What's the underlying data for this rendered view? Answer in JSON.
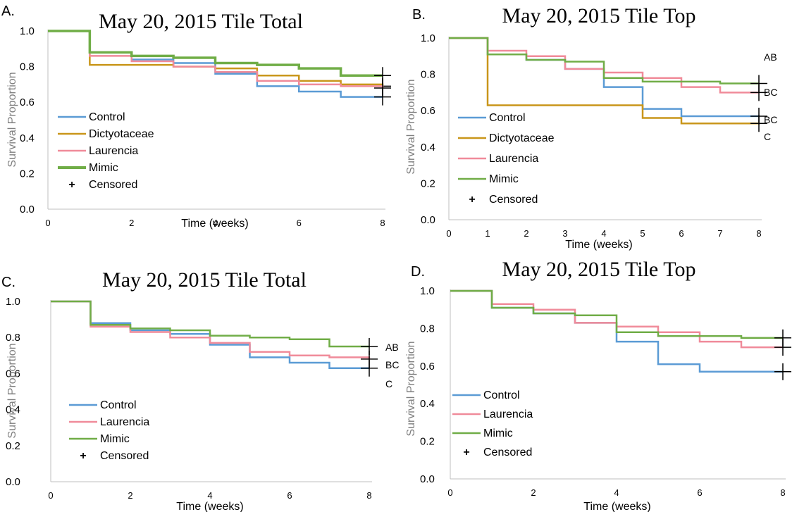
{
  "chart_data": [
    {
      "type": "line",
      "panel": "A.",
      "title": "May 20, 2015 Tile Total",
      "xlabel": "Time (weeks)",
      "ylabel": "Survival Proportion",
      "xlim": [
        0,
        8
      ],
      "ylim": [
        0,
        1
      ],
      "xticks": [
        "0",
        "2",
        "4",
        "6",
        "8"
      ],
      "yticks": [
        "0.0",
        "0.2",
        "0.4",
        "0.6",
        "0.8",
        "1.0"
      ],
      "grid": false,
      "legend_position": "left",
      "censored_label": "Censored",
      "significance_labels": [],
      "series": [
        {
          "name": "Control",
          "color": "#5b9bd5",
          "x": [
            0,
            1,
            2,
            3,
            4,
            5,
            6,
            7,
            8
          ],
          "y": [
            1.0,
            0.88,
            0.84,
            0.82,
            0.76,
            0.69,
            0.66,
            0.63,
            0.63
          ]
        },
        {
          "name": "Dictyotaceae",
          "color": "#c9961a",
          "x": [
            0,
            1,
            2,
            3,
            4,
            5,
            6,
            7,
            8
          ],
          "y": [
            1.0,
            0.81,
            0.81,
            0.8,
            0.79,
            0.75,
            0.72,
            0.7,
            0.69
          ]
        },
        {
          "name": "Laurencia",
          "color": "#f08b9a",
          "x": [
            0,
            1,
            2,
            3,
            4,
            5,
            6,
            7,
            8
          ],
          "y": [
            1.0,
            0.86,
            0.83,
            0.8,
            0.77,
            0.72,
            0.7,
            0.69,
            0.68
          ]
        },
        {
          "name": "Mimic",
          "color": "#70ad47",
          "x": [
            0,
            1,
            2,
            3,
            4,
            5,
            6,
            7,
            8
          ],
          "y": [
            1.0,
            0.88,
            0.86,
            0.85,
            0.82,
            0.81,
            0.79,
            0.75,
            0.75
          ]
        }
      ]
    },
    {
      "type": "line",
      "panel": "B.",
      "title": "May 20, 2015 Tile Top",
      "xlabel": "Time (weeks)",
      "ylabel": "Survival Proportion",
      "xlim": [
        0,
        8
      ],
      "ylim": [
        0,
        1
      ],
      "xticks": [
        "0",
        "1",
        "2",
        "3",
        "4",
        "5",
        "6",
        "7",
        "8"
      ],
      "yticks": [
        "0.0",
        "0.2",
        "0.4",
        "0.6",
        "0.8",
        "1.0"
      ],
      "grid": false,
      "legend_position": "left",
      "censored_label": "Censored",
      "significance_labels": [
        "AB",
        "BC",
        "BC",
        "C"
      ],
      "series": [
        {
          "name": "Control",
          "color": "#5b9bd5",
          "x": [
            0,
            1,
            2,
            3,
            4,
            5,
            6,
            7,
            8
          ],
          "y": [
            1.0,
            0.91,
            0.88,
            0.83,
            0.73,
            0.61,
            0.57,
            0.57,
            0.57
          ]
        },
        {
          "name": "Dictyotaceae",
          "color": "#c9961a",
          "x": [
            0,
            1,
            2,
            3,
            4,
            5,
            6,
            7,
            8
          ],
          "y": [
            1.0,
            0.63,
            0.63,
            0.63,
            0.63,
            0.56,
            0.53,
            0.53,
            0.53
          ]
        },
        {
          "name": "Laurencia",
          "color": "#f08b9a",
          "x": [
            0,
            1,
            2,
            3,
            4,
            5,
            6,
            7,
            8
          ],
          "y": [
            1.0,
            0.93,
            0.9,
            0.83,
            0.81,
            0.78,
            0.73,
            0.7,
            0.7
          ]
        },
        {
          "name": "Mimic",
          "color": "#70ad47",
          "x": [
            0,
            1,
            2,
            3,
            4,
            5,
            6,
            7,
            8
          ],
          "y": [
            1.0,
            0.91,
            0.88,
            0.87,
            0.78,
            0.76,
            0.76,
            0.75,
            0.75
          ]
        }
      ]
    },
    {
      "type": "line",
      "panel": "C.",
      "title": "May 20, 2015 Tile Total",
      "xlabel": "Time (weeks)",
      "ylabel": "Survival Proportion",
      "xlim": [
        0,
        8
      ],
      "ylim": [
        0,
        1
      ],
      "xticks": [
        "0",
        "2",
        "4",
        "6",
        "8"
      ],
      "yticks": [
        "0.0",
        "0.2",
        "0.4",
        "0.6",
        "0.8",
        "1.0"
      ],
      "grid": false,
      "legend_position": "left",
      "censored_label": "Censored",
      "significance_labels": [
        "AB",
        "BC",
        "C"
      ],
      "series": [
        {
          "name": "Control",
          "color": "#5b9bd5",
          "x": [
            0,
            1,
            2,
            3,
            4,
            5,
            6,
            7,
            8
          ],
          "y": [
            1.0,
            0.88,
            0.84,
            0.82,
            0.76,
            0.69,
            0.66,
            0.63,
            0.63
          ]
        },
        {
          "name": "Laurencia",
          "color": "#f08b9a",
          "x": [
            0,
            1,
            2,
            3,
            4,
            5,
            6,
            7,
            8
          ],
          "y": [
            1.0,
            0.86,
            0.83,
            0.8,
            0.77,
            0.72,
            0.7,
            0.69,
            0.68
          ]
        },
        {
          "name": "Mimic",
          "color": "#70ad47",
          "x": [
            0,
            1,
            2,
            3,
            4,
            5,
            6,
            7,
            8
          ],
          "y": [
            1.0,
            0.87,
            0.85,
            0.84,
            0.81,
            0.8,
            0.79,
            0.75,
            0.75
          ]
        }
      ]
    },
    {
      "type": "line",
      "panel": "D.",
      "title": "May 20, 2015 Tile Top",
      "xlabel": "Time (weeks)",
      "ylabel": "Survival Proportion",
      "xlim": [
        0,
        8
      ],
      "ylim": [
        0,
        1
      ],
      "xticks": [
        "0",
        "2",
        "4",
        "6",
        "8"
      ],
      "yticks": [
        "0.0",
        "0.2",
        "0.4",
        "0.6",
        "0.8",
        "1.0"
      ],
      "grid": false,
      "legend_position": "left",
      "censored_label": "Censored",
      "significance_labels": [],
      "series": [
        {
          "name": "Control",
          "color": "#5b9bd5",
          "x": [
            0,
            1,
            2,
            3,
            4,
            5,
            6,
            7,
            8
          ],
          "y": [
            1.0,
            0.91,
            0.88,
            0.83,
            0.73,
            0.61,
            0.57,
            0.57,
            0.57
          ]
        },
        {
          "name": "Laurencia",
          "color": "#f08b9a",
          "x": [
            0,
            1,
            2,
            3,
            4,
            5,
            6,
            7,
            8
          ],
          "y": [
            1.0,
            0.93,
            0.9,
            0.83,
            0.81,
            0.78,
            0.73,
            0.7,
            0.7
          ]
        },
        {
          "name": "Mimic",
          "color": "#70ad47",
          "x": [
            0,
            1,
            2,
            3,
            4,
            5,
            6,
            7,
            8
          ],
          "y": [
            1.0,
            0.91,
            0.88,
            0.87,
            0.78,
            0.76,
            0.76,
            0.75,
            0.75
          ]
        }
      ]
    }
  ]
}
